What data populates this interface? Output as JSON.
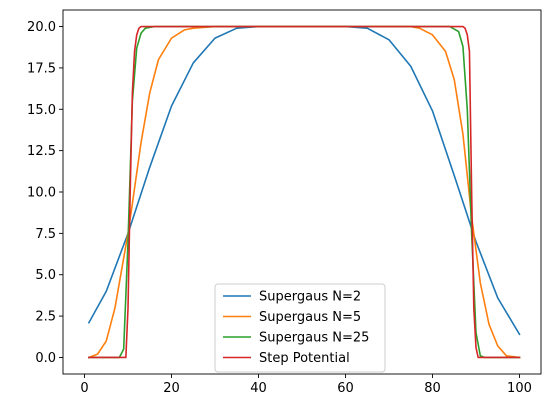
{
  "chart_data": {
    "type": "line",
    "title": "",
    "xlabel": "",
    "ylabel": "",
    "xlim": [
      -4.95,
      104.95
    ],
    "ylim": [
      -1.0,
      21.0
    ],
    "xticks": [
      0,
      20,
      40,
      60,
      80,
      100
    ],
    "xtick_labels": [
      "0",
      "20",
      "40",
      "60",
      "80",
      "100"
    ],
    "yticks": [
      0.0,
      2.5,
      5.0,
      7.5,
      10.0,
      12.5,
      15.0,
      17.5,
      20.0
    ],
    "ytick_labels": [
      "0.0",
      "2.5",
      "5.0",
      "7.5",
      "10.0",
      "12.5",
      "15.0",
      "17.5",
      "20.0"
    ],
    "grid": false,
    "legend_position": "lower-center",
    "x_range": [
      1,
      100
    ],
    "series": [
      {
        "name": "Supergaus N=2",
        "color": "#1f77b4",
        "x": [
          1,
          5,
          10,
          15,
          20,
          25,
          30,
          35,
          40,
          45,
          50,
          55,
          60,
          65,
          70,
          75,
          80,
          85,
          90,
          95,
          100
        ],
        "y": [
          2.1,
          4.0,
          7.5,
          11.5,
          15.2,
          17.8,
          19.3,
          19.9,
          20.0,
          20.0,
          20.0,
          20.0,
          20.0,
          19.9,
          19.2,
          17.6,
          14.9,
          11.0,
          7.0,
          3.6,
          1.4
        ]
      },
      {
        "name": "Supergaus N=5",
        "color": "#ff7f0e",
        "x": [
          1,
          3,
          5,
          7,
          9,
          10,
          11,
          13,
          15,
          17,
          20,
          23,
          25,
          30,
          50,
          75,
          77,
          80,
          83,
          85,
          87,
          89,
          90,
          91,
          93,
          95,
          97,
          100
        ],
        "y": [
          0.0,
          0.2,
          1.0,
          3.0,
          6.0,
          7.5,
          9.3,
          13.0,
          16.0,
          18.0,
          19.3,
          19.8,
          19.9,
          20.0,
          20.0,
          20.0,
          19.9,
          19.5,
          18.5,
          16.8,
          13.5,
          8.5,
          6.5,
          4.5,
          2.0,
          0.7,
          0.1,
          0.0
        ]
      },
      {
        "name": "Supergaus N=25",
        "color": "#2ca02c",
        "x": [
          1,
          8,
          9,
          10,
          11,
          12,
          13,
          14,
          16,
          50,
          84,
          86,
          87,
          88,
          89,
          90,
          91,
          92,
          100
        ],
        "y": [
          0.0,
          0.0,
          0.5,
          7.0,
          15.5,
          18.7,
          19.6,
          19.9,
          20.0,
          20.0,
          20.0,
          19.7,
          18.8,
          15.0,
          7.5,
          1.5,
          0.1,
          0.0,
          0.0
        ]
      },
      {
        "name": "Step Potential",
        "color": "#d62728",
        "x": [
          1,
          9.5,
          10,
          10.5,
          11,
          11.5,
          12,
          12.5,
          13,
          50,
          87,
          87.5,
          88,
          88.5,
          89,
          89.5,
          90,
          90.5,
          100
        ],
        "y": [
          0.0,
          0.0,
          3.0,
          10.0,
          16.0,
          18.5,
          19.5,
          19.9,
          20.0,
          20.0,
          20.0,
          19.9,
          19.5,
          18.5,
          10.0,
          3.0,
          0.6,
          0.0,
          0.0
        ]
      }
    ]
  }
}
